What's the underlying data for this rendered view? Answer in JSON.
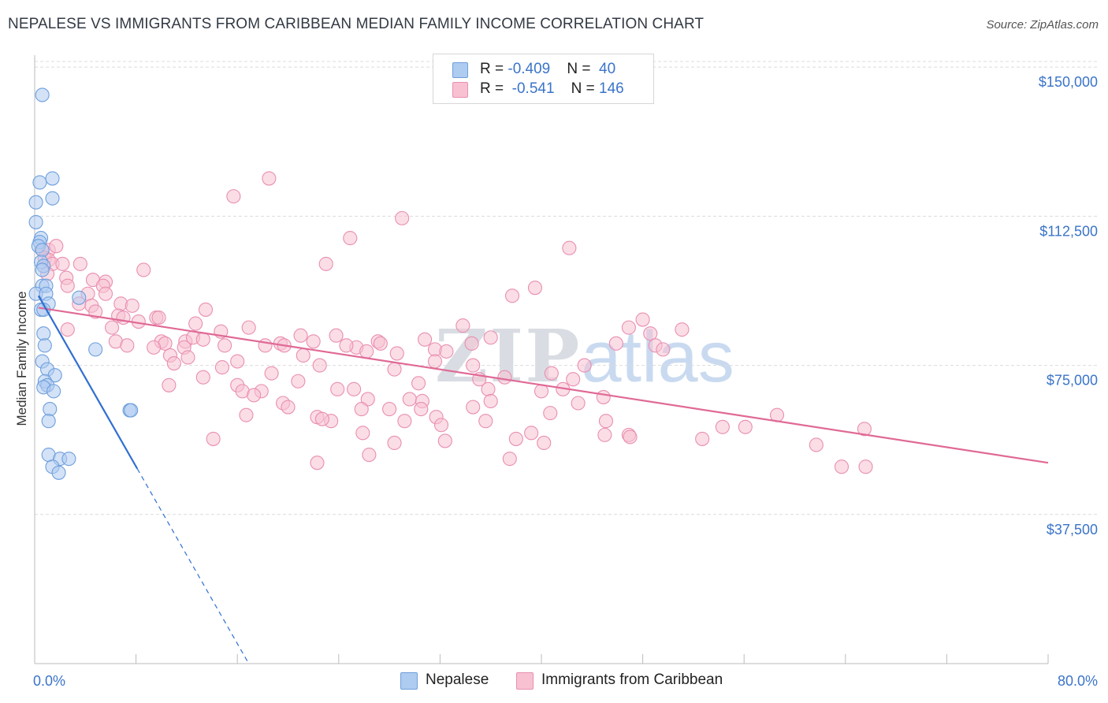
{
  "title": "NEPALESE VS IMMIGRANTS FROM CARIBBEAN MEDIAN FAMILY INCOME CORRELATION CHART",
  "source": "Source: ZipAtlas.com",
  "watermark": {
    "zip": "ZIP",
    "atlas": "atlas"
  },
  "legend": {
    "rows": [
      {
        "r_label": "R = ",
        "r_value": "-0.409",
        "n_label": "N = ",
        "n_value": "40",
        "color": "#aecbf0",
        "border": "#6e9fdc"
      },
      {
        "r_label": "R = ",
        "r_value": "-0.541",
        "n_label": "N = ",
        "n_value": "146",
        "color": "#f7c1d2",
        "border": "#e98fb0"
      }
    ]
  },
  "bottom_legend": [
    {
      "label": "Nepalese",
      "color": "#aecbf0",
      "border": "#6e9fdc"
    },
    {
      "label": "Immigrants from Caribbean",
      "color": "#f7c1d2",
      "border": "#e98fb0"
    }
  ],
  "chart_data": {
    "type": "scatter",
    "title": "NEPALESE VS IMMIGRANTS FROM CARIBBEAN MEDIAN FAMILY INCOME CORRELATION CHART",
    "xlabel": "",
    "ylabel": "Median Family Income",
    "xlim": [
      0,
      80
    ],
    "ylim": [
      0,
      153000
    ],
    "x_tick_labels": [
      "0.0%",
      "80.0%"
    ],
    "y_ticks": [
      {
        "value": 37500,
        "label": "$37,500"
      },
      {
        "value": 75000,
        "label": "$75,000"
      },
      {
        "value": 112500,
        "label": "$112,500"
      },
      {
        "value": 150000,
        "label": "$150,000"
      }
    ],
    "grid": true,
    "series": [
      {
        "name": "Nepalese",
        "color": "#6e9fdc",
        "fill": "#aecbf0",
        "line_color": "#2f6fd1",
        "trend": {
          "x0": 0.3,
          "y0": 92500,
          "x1": 8.1,
          "y1": 49000,
          "dashed_to_x": 16.9,
          "dashed_to_y": 0
        },
        "points": [
          [
            0.6,
            143000
          ],
          [
            0.4,
            121000
          ],
          [
            1.4,
            122000
          ],
          [
            1.4,
            117000
          ],
          [
            0.1,
            116000
          ],
          [
            0.1,
            111000
          ],
          [
            0.5,
            107000
          ],
          [
            0.4,
            106000
          ],
          [
            0.3,
            105000
          ],
          [
            0.6,
            104000
          ],
          [
            0.5,
            101000
          ],
          [
            0.7,
            100000
          ],
          [
            0.6,
            99000
          ],
          [
            0.6,
            95000
          ],
          [
            0.9,
            95000
          ],
          [
            0.1,
            93000
          ],
          [
            0.9,
            93000
          ],
          [
            3.5,
            92000
          ],
          [
            1.1,
            90500
          ],
          [
            0.5,
            89000
          ],
          [
            0.7,
            89000
          ],
          [
            0.7,
            83000
          ],
          [
            0.8,
            80000
          ],
          [
            4.8,
            79000
          ],
          [
            0.6,
            76000
          ],
          [
            1.0,
            74000
          ],
          [
            1.6,
            72500
          ],
          [
            0.8,
            71000
          ],
          [
            1.0,
            70000
          ],
          [
            0.7,
            69500
          ],
          [
            1.5,
            68500
          ],
          [
            1.2,
            64000
          ],
          [
            7.5,
            63700
          ],
          [
            7.6,
            63700
          ],
          [
            1.1,
            61000
          ],
          [
            1.1,
            52500
          ],
          [
            2.0,
            51500
          ],
          [
            2.7,
            51500
          ],
          [
            1.4,
            49500
          ],
          [
            1.9,
            48000
          ]
        ]
      },
      {
        "name": "Immigrants from Caribbean",
        "color": "#e98fb0",
        "fill": "#f7c1d2",
        "line_color": "#e06995",
        "trend": {
          "x0": 0.3,
          "y0": 89500,
          "x1": 80,
          "y1": 50500
        },
        "points": [
          [
            18.5,
            122000
          ],
          [
            15.7,
            117500
          ],
          [
            29.0,
            112000
          ],
          [
            24.9,
            107000
          ],
          [
            42.2,
            104500
          ],
          [
            23.0,
            100500
          ],
          [
            0.6,
            104000
          ],
          [
            1.1,
            104000
          ],
          [
            1.7,
            105000
          ],
          [
            0.8,
            102000
          ],
          [
            1.1,
            101500
          ],
          [
            1.4,
            100500
          ],
          [
            2.2,
            100500
          ],
          [
            3.6,
            100500
          ],
          [
            8.6,
            99000
          ],
          [
            1.0,
            98000
          ],
          [
            2.5,
            97000
          ],
          [
            4.6,
            96500
          ],
          [
            5.6,
            96000
          ],
          [
            2.6,
            95000
          ],
          [
            5.4,
            95000
          ],
          [
            39.5,
            94500
          ],
          [
            4.2,
            93000
          ],
          [
            5.6,
            93000
          ],
          [
            37.7,
            92500
          ],
          [
            3.5,
            90500
          ],
          [
            4.5,
            90000
          ],
          [
            6.8,
            90500
          ],
          [
            7.7,
            90000
          ],
          [
            4.8,
            88500
          ],
          [
            13.5,
            89000
          ],
          [
            6.6,
            87500
          ],
          [
            7.0,
            87000
          ],
          [
            9.6,
            87000
          ],
          [
            9.8,
            87000
          ],
          [
            8.2,
            86000
          ],
          [
            12.7,
            85500
          ],
          [
            16.9,
            84500
          ],
          [
            33.8,
            85000
          ],
          [
            46.9,
            84500
          ],
          [
            51.1,
            84000
          ],
          [
            48.0,
            86500
          ],
          [
            2.6,
            84000
          ],
          [
            6.1,
            84500
          ],
          [
            14.7,
            83500
          ],
          [
            21.0,
            82500
          ],
          [
            23.8,
            82500
          ],
          [
            36.0,
            82000
          ],
          [
            48.6,
            83000
          ],
          [
            30.8,
            81500
          ],
          [
            11.9,
            81000
          ],
          [
            12.5,
            82000
          ],
          [
            13.3,
            81500
          ],
          [
            6.4,
            81000
          ],
          [
            10.0,
            81000
          ],
          [
            10.3,
            80500
          ],
          [
            15.0,
            80000
          ],
          [
            7.3,
            80000
          ],
          [
            9.4,
            79500
          ],
          [
            22.0,
            81000
          ],
          [
            25.4,
            79500
          ],
          [
            24.6,
            80000
          ],
          [
            27.1,
            81000
          ],
          [
            27.3,
            80500
          ],
          [
            18.2,
            80000
          ],
          [
            19.4,
            80500
          ],
          [
            19.7,
            80000
          ],
          [
            34.5,
            80500
          ],
          [
            49.0,
            80000
          ],
          [
            45.9,
            80500
          ],
          [
            11.8,
            79500
          ],
          [
            28.6,
            78000
          ],
          [
            26.2,
            78500
          ],
          [
            31.6,
            79000
          ],
          [
            32.5,
            78500
          ],
          [
            49.6,
            79000
          ],
          [
            10.7,
            77500
          ],
          [
            12.1,
            77000
          ],
          [
            16.0,
            76000
          ],
          [
            21.2,
            77500
          ],
          [
            31.6,
            76000
          ],
          [
            11.0,
            75500
          ],
          [
            14.8,
            74500
          ],
          [
            22.5,
            75000
          ],
          [
            34.6,
            75000
          ],
          [
            43.4,
            75000
          ],
          [
            28.4,
            74000
          ],
          [
            18.7,
            73000
          ],
          [
            40.8,
            73000
          ],
          [
            13.3,
            72000
          ],
          [
            35.1,
            71500
          ],
          [
            37.1,
            72000
          ],
          [
            42.5,
            71500
          ],
          [
            20.8,
            71000
          ],
          [
            30.3,
            70500
          ],
          [
            10.6,
            70000
          ],
          [
            16.0,
            70000
          ],
          [
            16.4,
            68500
          ],
          [
            17.9,
            68500
          ],
          [
            23.9,
            69000
          ],
          [
            25.2,
            69000
          ],
          [
            35.8,
            69000
          ],
          [
            40.0,
            68500
          ],
          [
            41.7,
            69000
          ],
          [
            44.9,
            67000
          ],
          [
            29.6,
            66500
          ],
          [
            30.6,
            66000
          ],
          [
            17.3,
            67500
          ],
          [
            26.3,
            66500
          ],
          [
            36.0,
            66000
          ],
          [
            42.9,
            65500
          ],
          [
            19.6,
            65500
          ],
          [
            20.0,
            64500
          ],
          [
            34.6,
            64500
          ],
          [
            25.8,
            64000
          ],
          [
            28.0,
            64000
          ],
          [
            30.5,
            64000
          ],
          [
            16.7,
            62500
          ],
          [
            22.3,
            62000
          ],
          [
            23.4,
            61000
          ],
          [
            22.7,
            61500
          ],
          [
            29.2,
            61000
          ],
          [
            31.7,
            62000
          ],
          [
            32.1,
            60000
          ],
          [
            35.6,
            61000
          ],
          [
            40.7,
            63000
          ],
          [
            45.1,
            61000
          ],
          [
            54.3,
            59500
          ],
          [
            56.1,
            59500
          ],
          [
            58.6,
            62500
          ],
          [
            65.5,
            59000
          ],
          [
            25.9,
            58000
          ],
          [
            39.2,
            58000
          ],
          [
            45.0,
            57500
          ],
          [
            46.9,
            57500
          ],
          [
            47.0,
            57000
          ],
          [
            52.7,
            56500
          ],
          [
            14.1,
            56500
          ],
          [
            32.4,
            56000
          ],
          [
            38.0,
            56500
          ],
          [
            28.4,
            55500
          ],
          [
            40.2,
            55500
          ],
          [
            61.7,
            55000
          ],
          [
            26.4,
            52500
          ],
          [
            37.5,
            51500
          ],
          [
            22.3,
            50500
          ],
          [
            63.7,
            49500
          ],
          [
            65.6,
            49500
          ]
        ]
      }
    ]
  }
}
